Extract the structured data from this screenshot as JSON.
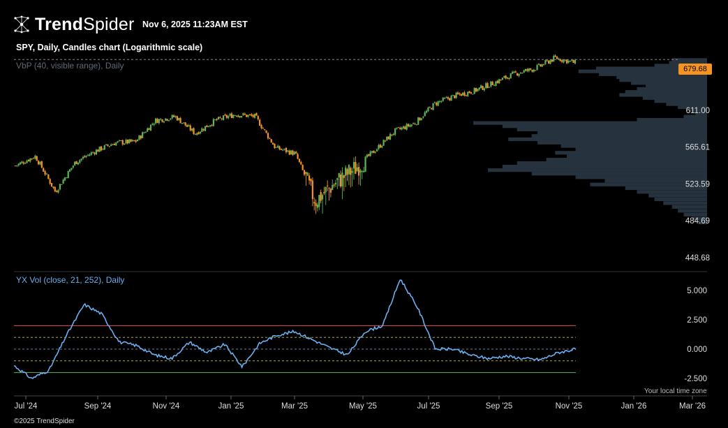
{
  "header": {
    "brand_bold": "Trend",
    "brand_light": "Spider",
    "logo_icon": "spider-network-icon",
    "timestamp": "Nov 6, 2025 11:23AM EST"
  },
  "price_panel": {
    "title": "SPY, Daily, Candles chart (Logarithmic scale)",
    "vbp_label": "VbP (40, visible range), Daily",
    "last_price_label": "679.68",
    "y_ticks": [
      "611.00",
      "565.61",
      "523.59",
      "484.69",
      "448.68"
    ]
  },
  "indicator_panel": {
    "label": "YX Vol (close, 21, 252), Daily",
    "y_ticks": [
      "5.000",
      "2.500",
      "0.000",
      "-2.500"
    ]
  },
  "x_axis": {
    "ticks": [
      "Jul '24",
      "Sep '24",
      "Nov '24",
      "Jan '25",
      "Mar '25",
      "May '25",
      "Jul '25",
      "Sep '25",
      "Nov '25",
      "Jan '26",
      "Mar '26"
    ]
  },
  "footer": {
    "timezone_note": "Your local time zone",
    "copyright": "©2025 TrendSpider"
  },
  "colors": {
    "background": "#000000",
    "up_candle": "#5fb35a",
    "down_candle": "#f5941e",
    "vbp_bars": "#26323d",
    "indicator_line": "#6ab0f0",
    "upper_band": "#e05555",
    "dashed_band": "#b8a54a",
    "zero_line": "#6a7ea0",
    "lower_band": "#5fb35a"
  },
  "chart_data": [
    {
      "type": "line",
      "title": "SPY, Daily, Candles chart (Logarithmic scale)",
      "scale": "log",
      "ylim": [
        440,
        690
      ],
      "x": [
        "Jul '24",
        "Aug '24",
        "Aug '24",
        "Sep '24",
        "Oct '24",
        "Oct '24",
        "Nov '24",
        "Dec '24",
        "Dec '24",
        "Jan '25",
        "Jan '25",
        "Feb '25",
        "Feb '25",
        "Mar '25",
        "Mar '25",
        "Apr '25",
        "Apr '25",
        "Apr '25",
        "May '25",
        "May '25",
        "Jun '25",
        "Jul '25",
        "Jul '25",
        "Aug '25",
        "Sep '25",
        "Sep '25",
        "Oct '25",
        "Oct '25",
        "Nov '25"
      ],
      "values": [
        544,
        555,
        515,
        548,
        561,
        571,
        572,
        598,
        603,
        582,
        598,
        606,
        603,
        565,
        558,
        505,
        525,
        541,
        562,
        585,
        595,
        620,
        630,
        637,
        648,
        660,
        667,
        682,
        675
      ],
      "series": [
        {
          "name": "",
          "values": [
            544,
            555,
            515,
            548,
            561,
            571,
            572,
            598,
            603,
            582,
            598,
            606,
            603,
            565,
            558,
            505,
            525,
            541,
            562,
            585,
            595,
            620,
            630,
            637,
            648,
            660,
            667,
            682,
            675
          ]
        }
      ],
      "last_value": 679.68
    },
    {
      "type": "bar",
      "title": "VbP (40, visible range), Daily",
      "orientation": "horizontal",
      "categories": [
        "679",
        "675",
        "671",
        "667",
        "663",
        "659",
        "655",
        "651",
        "647",
        "643",
        "639",
        "635",
        "631",
        "627",
        "623",
        "619",
        "615",
        "611",
        "607",
        "603",
        "599",
        "595",
        "591",
        "587",
        "583",
        "579",
        "575",
        "571",
        "567",
        "563",
        "559",
        "555",
        "551",
        "547",
        "543",
        "539",
        "535",
        "531",
        "527",
        "523",
        "519",
        "515",
        "511",
        "507",
        "503",
        "499",
        "495",
        "491",
        "487",
        "483"
      ],
      "values": [
        12,
        13,
        18,
        38,
        44,
        37,
        31,
        30,
        26,
        21,
        24,
        28,
        30,
        22,
        18,
        14,
        10,
        6,
        4,
        8,
        24,
        80,
        70,
        65,
        58,
        60,
        68,
        58,
        50,
        45,
        52,
        48,
        55,
        65,
        70,
        75,
        60,
        45,
        35,
        40,
        28,
        24,
        20,
        18,
        15,
        12,
        10,
        8,
        5,
        3
      ]
    },
    {
      "type": "line",
      "title": "YX Vol (close, 21, 252), Daily",
      "ylim": [
        -3.2,
        6.2
      ],
      "x": [
        "Jul '24",
        "Jul '24",
        "Jul '24",
        "Aug '24",
        "Aug '24",
        "Aug '24",
        "Sep '24",
        "Sep '24",
        "Oct '24",
        "Oct '24",
        "Nov '24",
        "Nov '24",
        "Dec '24",
        "Dec '24",
        "Jan '25",
        "Jan '25",
        "Jan '25",
        "Feb '25",
        "Feb '25",
        "Mar '25",
        "Mar '25",
        "Apr '25",
        "Apr '25",
        "Apr '25",
        "May '25",
        "May '25",
        "Jun '25",
        "Jul '25",
        "Aug '25",
        "Sep '25",
        "Oct '25",
        "Oct '25",
        "Nov '25"
      ],
      "values": [
        -1.4,
        -2.5,
        -1.8,
        1.2,
        3.8,
        3.0,
        0.6,
        0.3,
        -0.5,
        -0.8,
        0.6,
        -0.3,
        0.4,
        -1.5,
        0.5,
        1.2,
        1.5,
        0.8,
        0.1,
        -0.5,
        1.5,
        2.0,
        6.0,
        3.5,
        0.0,
        0.0,
        -0.5,
        -0.8,
        -0.6,
        -0.8,
        -0.9,
        -0.3,
        0.0
      ],
      "bands": {
        "upper": 2.0,
        "dash_upper": 1.0,
        "zero": 0.0,
        "dash_lower": -1.0,
        "lower": -2.0
      }
    }
  ]
}
